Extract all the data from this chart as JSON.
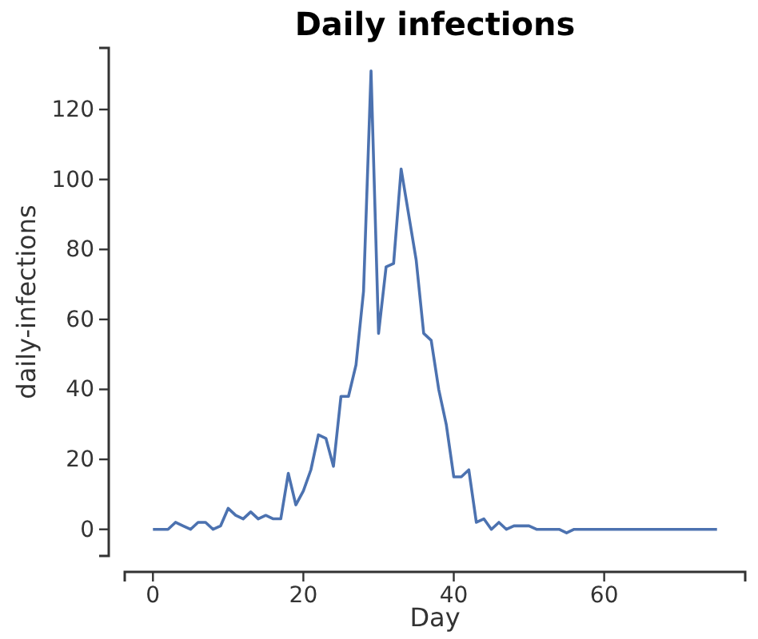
{
  "chart_data": {
    "type": "line",
    "title": "Daily infections",
    "xlabel": "Day",
    "ylabel": "daily-infections",
    "x": [
      0,
      1,
      2,
      3,
      4,
      5,
      6,
      7,
      8,
      9,
      10,
      11,
      12,
      13,
      14,
      15,
      16,
      17,
      18,
      19,
      20,
      21,
      22,
      23,
      24,
      25,
      26,
      27,
      28,
      29,
      30,
      31,
      32,
      33,
      34,
      35,
      36,
      37,
      38,
      39,
      40,
      41,
      42,
      43,
      44,
      45,
      46,
      47,
      48,
      49,
      50,
      51,
      52,
      53,
      54,
      55,
      56,
      57,
      58,
      59,
      60,
      61,
      62,
      63,
      64,
      65,
      66,
      67,
      68,
      69,
      70,
      71,
      72,
      73,
      74,
      75
    ],
    "series": [
      {
        "color": "#4c72b0",
        "values": [
          0,
          0,
          0,
          2,
          1,
          0,
          2,
          2,
          0,
          1,
          6,
          4,
          3,
          5,
          3,
          4,
          3,
          3,
          16,
          7,
          11,
          17,
          27,
          26,
          18,
          38,
          38,
          47,
          68,
          131,
          56,
          75,
          76,
          103,
          90,
          77,
          56,
          54,
          40,
          30,
          15,
          15,
          17,
          2,
          3,
          0,
          2,
          0,
          1,
          1,
          1,
          0,
          0,
          0,
          0,
          -1,
          0,
          0,
          0,
          0,
          0,
          0,
          0,
          0,
          0,
          0,
          0,
          0,
          0,
          0,
          0,
          0,
          0,
          0,
          0,
          0
        ]
      }
    ],
    "xlim": [
      -3.75,
      78.75
    ],
    "xticks": [
      0,
      20,
      40,
      60
    ],
    "ylim": [
      -7.6,
      137.6
    ],
    "yticks": [
      0,
      20,
      40,
      60,
      80,
      100,
      120
    ],
    "grid": false,
    "marker": "none",
    "line_style": "solid"
  }
}
